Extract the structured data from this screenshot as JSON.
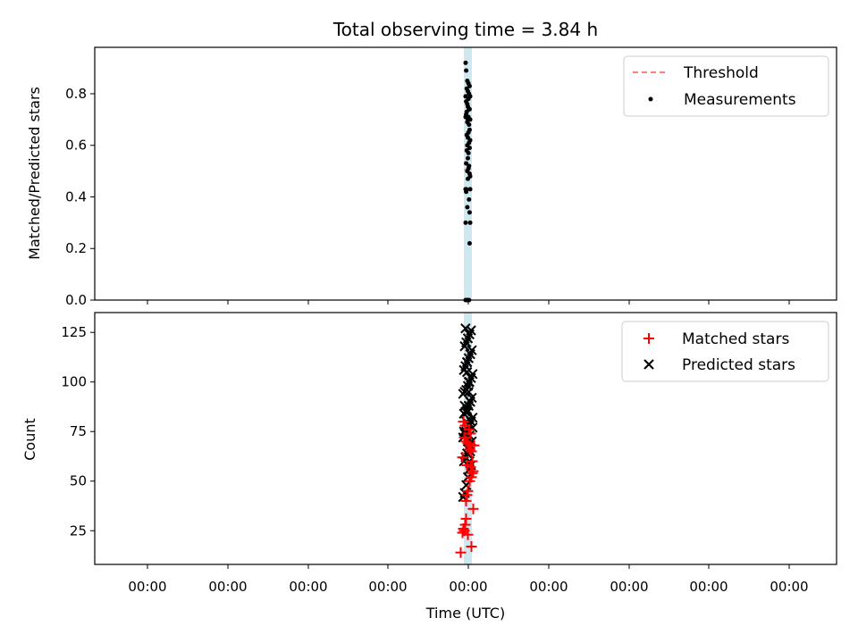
{
  "chart_data": {
    "type": "scatter",
    "title": "Total observing time = 3.84 h",
    "xlabel": "Time (UTC)",
    "x_tick_labels": [
      "00:00",
      "00:00",
      "00:00",
      "00:00",
      "00:00",
      "00:00",
      "00:00",
      "00:00",
      "00:00"
    ],
    "panels": [
      {
        "id": "ratio",
        "ylabel": "Matched/Predicted stars",
        "ylim": [
          0,
          0.98
        ],
        "yticks": [
          0.0,
          0.2,
          0.4,
          0.6,
          0.8
        ],
        "ytick_labels": [
          "0.0",
          "0.2",
          "0.4",
          "0.6",
          "0.8"
        ],
        "legend": [
          "Threshold",
          "Measurements"
        ],
        "legend_position": "top-right",
        "threshold_color": "#ff7f7f",
        "series": [
          {
            "name": "Measurements",
            "marker": "dot",
            "color": "#000000",
            "x": [
              -0.4,
              -0.3,
              -0.1,
              0.1,
              -0.2,
              0.3,
              0.0,
              -0.4,
              0.2,
              0.1,
              -0.3,
              0.4,
              -0.1,
              0.0,
              0.2,
              -0.2,
              0.3,
              -0.3,
              0.1,
              0.0,
              -0.1,
              0.2,
              0.4,
              -0.4,
              0.3,
              0.1,
              -0.2,
              0.0,
              0.2,
              -0.1,
              0.4,
              0.3,
              0.1,
              -0.2,
              0.0,
              -0.3,
              0.2,
              0.1,
              0.3,
              -0.1,
              0.4,
              0.0,
              -0.4,
              -0.3,
              0.4,
              -0.3,
              0.2,
              -0.4,
              -0.1,
              0.3,
              0.4,
              0.3,
              -0.4,
              -0.2,
              0.0,
              0.2
            ],
            "y": [
              0.92,
              0.89,
              0.85,
              0.84,
              0.82,
              0.83,
              0.81,
              0.79,
              0.8,
              0.78,
              0.77,
              0.79,
              0.76,
              0.75,
              0.74,
              0.73,
              0.74,
              0.72,
              0.71,
              0.7,
              0.69,
              0.68,
              0.7,
              0.71,
              0.66,
              0.65,
              0.64,
              0.63,
              0.61,
              0.6,
              0.62,
              0.59,
              0.57,
              0.58,
              0.55,
              0.53,
              0.52,
              0.51,
              0.49,
              0.5,
              0.48,
              0.47,
              0.43,
              0.43,
              0.43,
              0.42,
              0.39,
              0.3,
              0.36,
              0.34,
              0.3,
              0.22,
              0.0,
              0.0,
              0.0,
              0.0
            ]
          }
        ]
      },
      {
        "id": "count",
        "ylabel": "Count",
        "ylim": [
          8,
          135
        ],
        "yticks": [
          25,
          50,
          75,
          100,
          125
        ],
        "ytick_labels": [
          "25",
          "50",
          "75",
          "100",
          "125"
        ],
        "legend": [
          "Matched stars",
          "Predicted stars"
        ],
        "legend_position": "top-right",
        "series": [
          {
            "name": "Matched stars",
            "marker": "plus",
            "color": "#ff0000",
            "x": [
              -0.8,
              -0.6,
              -0.5,
              -0.4,
              -0.3,
              -0.2,
              -0.1,
              0.0,
              0.2,
              0.4,
              0.6,
              0.5,
              0.7,
              -0.5,
              -0.3,
              0.1,
              0.3,
              -0.4,
              -0.2,
              0.0,
              0.2,
              0.4,
              -0.6,
              -0.1,
              0.3,
              0.5,
              0.6,
              -0.2,
              0.0,
              0.4
            ],
            "y": [
              14,
              24,
              26,
              25,
              28,
              40,
              43,
              45,
              50,
              52,
              55,
              60,
              68,
              80,
              78,
              76,
              74,
              72,
              70,
              69,
              66,
              65,
              62,
              58,
              57,
              54,
              36,
              31,
              23,
              17
            ]
          },
          {
            "name": "Predicted stars",
            "marker": "x",
            "color": "#000000",
            "x": [
              -0.6,
              -0.4,
              -0.2,
              0.0,
              0.2,
              0.4,
              -0.5,
              -0.3,
              -0.1,
              0.1,
              0.3,
              0.5,
              -0.6,
              -0.4,
              -0.2,
              0.0,
              0.2,
              0.4,
              0.6,
              -0.5,
              -0.3,
              -0.1,
              0.1,
              0.3,
              0.5,
              -0.6,
              -0.4,
              -0.2,
              0.0,
              0.2,
              0.4,
              0.6,
              -0.5,
              -0.3,
              -0.1,
              0.1,
              0.3,
              0.5,
              -0.4,
              -0.2,
              0.0,
              0.2,
              0.4,
              -0.3,
              -0.1,
              0.1,
              0.3,
              -0.2,
              0.0,
              0.2,
              -0.1,
              0.1,
              0.0,
              -0.5,
              0.3,
              0.6,
              0.2,
              -0.4
            ],
            "y": [
              42,
              44,
              48,
              52,
              56,
              58,
              60,
              62,
              64,
              66,
              68,
              70,
              72,
              74,
              75,
              76,
              78,
              80,
              82,
              84,
              85,
              86,
              88,
              90,
              92,
              94,
              95,
              96,
              98,
              100,
              102,
              104,
              106,
              108,
              110,
              112,
              114,
              116,
              118,
              120,
              122,
              124,
              126,
              127,
              110,
              100,
              90,
              80,
              70,
              60,
              105,
              95,
              85,
              75,
              65,
              77,
              73,
              88
            ]
          }
        ]
      }
    ]
  }
}
